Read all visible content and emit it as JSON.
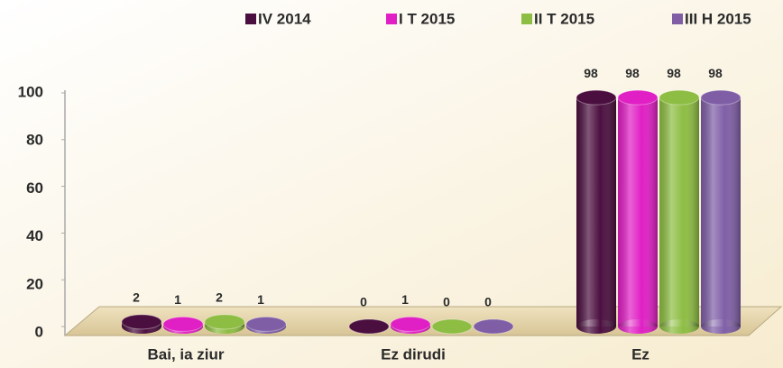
{
  "chart_data": {
    "type": "bar",
    "categories": [
      "Bai, ia ziur",
      "Ez dirudi",
      "Ez"
    ],
    "series": [
      {
        "name": "IV 2014",
        "color": "#4b0f3f",
        "values": [
          2,
          0,
          98
        ]
      },
      {
        "name": "I T 2015",
        "color": "#e01fc4",
        "values": [
          1,
          1,
          98
        ]
      },
      {
        "name": "II T 2015",
        "color": "#8dbd42",
        "values": [
          2,
          0,
          98
        ]
      },
      {
        "name": "III H 2015",
        "color": "#7f5ea6",
        "values": [
          1,
          0,
          98
        ]
      }
    ],
    "ylim": [
      0,
      100
    ],
    "yticks": [
      0,
      20,
      40,
      60,
      80,
      100
    ]
  }
}
